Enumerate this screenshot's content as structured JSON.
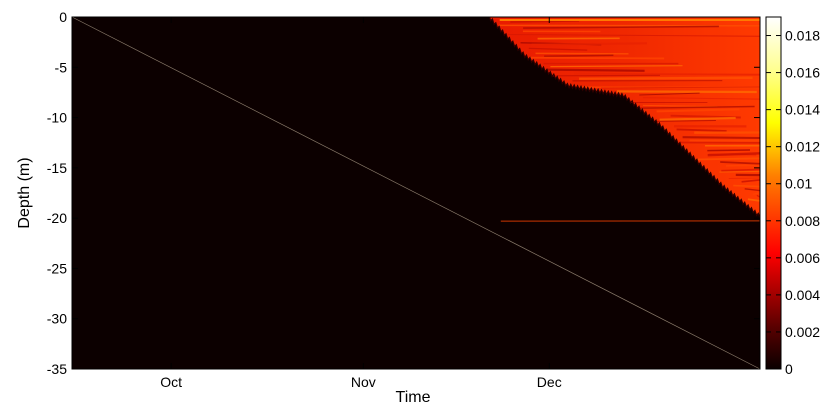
{
  "chart_data": {
    "type": "heatmap",
    "title": "",
    "xlabel": "Time",
    "ylabel": "Depth (m)",
    "x_tick_labels": [
      "Oct",
      "Nov",
      "Dec"
    ],
    "x_tick_days_since_sep15": [
      16,
      47,
      77
    ],
    "x_range_days_since_sep15": [
      0,
      111
    ],
    "ylim": [
      -35,
      0
    ],
    "y_ticks": [
      0,
      -5,
      -10,
      -15,
      -20,
      -25,
      -30,
      -35
    ],
    "colorbar": {
      "range": [
        0,
        0.019
      ],
      "ticks": [
        0,
        0.002,
        0.004,
        0.006,
        0.008,
        0.01,
        0.012,
        0.014,
        0.016,
        0.018
      ],
      "tick_labels": [
        "0",
        "0.002",
        "0.004",
        "0.006",
        "0.008",
        "0.01",
        "0.012",
        "0.014",
        "0.016",
        "0.018"
      ],
      "colormap": "hot"
    },
    "field": {
      "background_value": 0,
      "active_region": "above the front boundary, values roughly 0.003–0.006 with thin horizontal streaks",
      "front_boundary": [
        {
          "day": 67,
          "depth": 0
        },
        {
          "day": 73,
          "depth": -4
        },
        {
          "day": 80,
          "depth": -7
        },
        {
          "day": 89,
          "depth": -8
        },
        {
          "day": 95,
          "depth": -11
        },
        {
          "day": 100,
          "depth": -14
        },
        {
          "day": 105,
          "depth": -17
        },
        {
          "day": 111,
          "depth": -20
        }
      ]
    },
    "diagonal_line": {
      "from": {
        "day": 0,
        "depth": 0
      },
      "to": {
        "day": 111,
        "depth": -35
      }
    },
    "grid": false,
    "legend": "none"
  }
}
